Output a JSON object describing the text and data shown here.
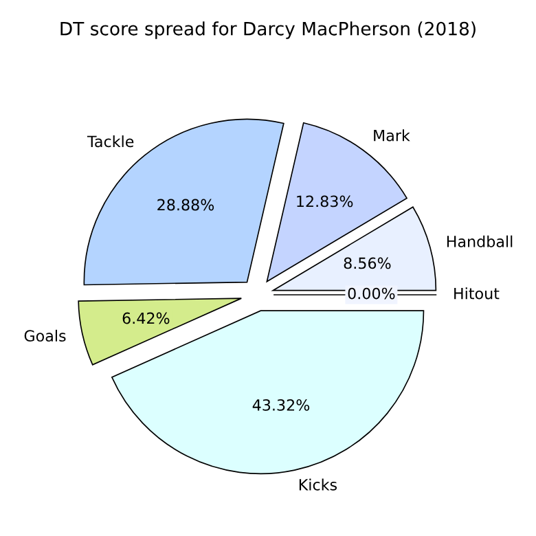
{
  "chart_data": {
    "type": "pie",
    "title": "DT score spread for Darcy MacPherson (2018)",
    "categories": [
      "Hitout",
      "Handball",
      "Mark",
      "Tackle",
      "Goals",
      "Kicks"
    ],
    "values": [
      0.0,
      8.56,
      12.83,
      28.88,
      6.42,
      43.32
    ],
    "value_labels": [
      "0.00%",
      "8.56%",
      "12.83%",
      "28.88%",
      "6.42%",
      "43.32%"
    ],
    "colors": [
      "#f0f4ff",
      "#e8f0ff",
      "#c4d4ff",
      "#b4d4ff",
      "#d4ec8c",
      "#dcffff"
    ]
  }
}
